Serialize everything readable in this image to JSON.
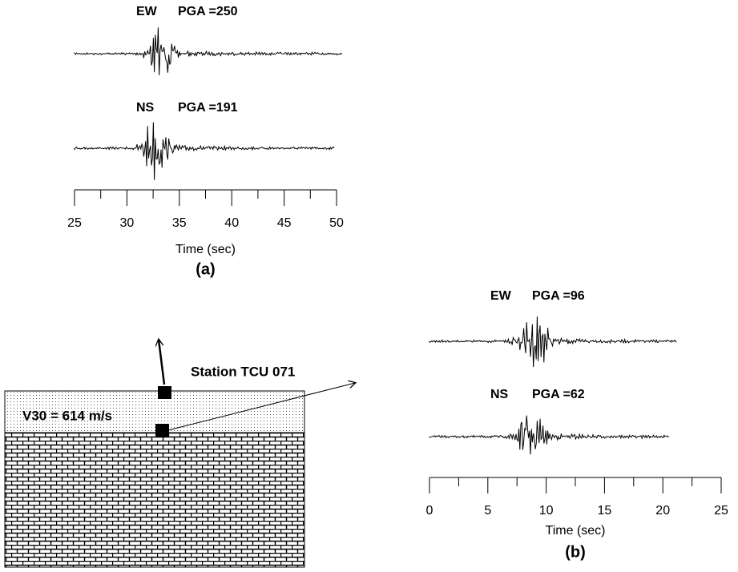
{
  "panel_a": {
    "traces": [
      {
        "component": "EW",
        "pga_label": "PGA =250"
      },
      {
        "component": "NS",
        "pga_label": "PGA =191"
      }
    ],
    "axis": {
      "xlim": [
        25,
        50
      ],
      "xticks": [
        25,
        30,
        35,
        40,
        45,
        50
      ],
      "xminor_ticks": [
        27.5,
        32.5,
        37.5,
        42.5,
        47.5
      ],
      "xlabel": "Time (sec)"
    },
    "label": "(a)"
  },
  "panel_b": {
    "traces": [
      {
        "component": "EW",
        "pga_label": "PGA =96"
      },
      {
        "component": "NS",
        "pga_label": "PGA =62"
      }
    ],
    "axis": {
      "xlim": [
        0,
        25
      ],
      "xticks": [
        0,
        5,
        10,
        15,
        20,
        25
      ],
      "xminor_ticks": [
        2.5,
        7.5,
        12.5,
        17.5,
        22.5
      ],
      "xlabel": "Time (sec)"
    },
    "label": "(b)"
  },
  "site": {
    "station": "Station  TCU 071",
    "v30": "V30 = 614 m/s"
  }
}
